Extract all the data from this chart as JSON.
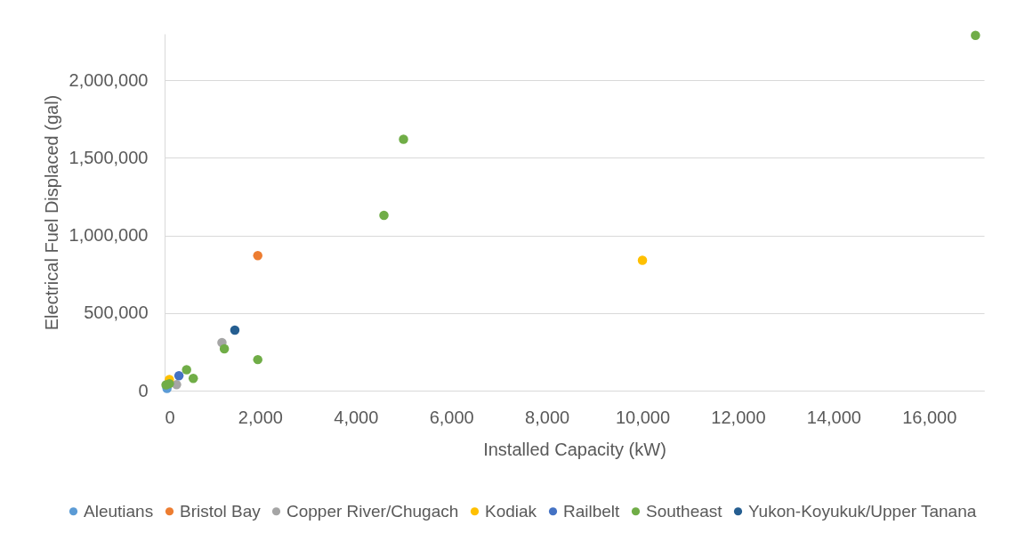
{
  "chart_data": {
    "type": "scatter",
    "xlabel": "Installed Capacity (kW)",
    "ylabel": "Electrical Fuel Displaced (gal)",
    "xlim": [
      0,
      17150
    ],
    "ylim": [
      0,
      2300000
    ],
    "xticks": [
      0,
      {
        "value": 2000,
        "label": "2,000"
      },
      {
        "value": 4000,
        "label": "4,000"
      },
      {
        "value": 6000,
        "label": "6,000"
      },
      {
        "value": 8000,
        "label": "8,000"
      },
      {
        "value": 10000,
        "label": "10,000"
      },
      {
        "value": 12000,
        "label": "12,000"
      },
      {
        "value": 14000,
        "label": "14,000"
      },
      {
        "value": 16000,
        "label": "16,000"
      }
    ],
    "yticks": [
      0,
      {
        "value": 500000,
        "label": "500,000"
      },
      {
        "value": 1000000,
        "label": "1,000,000"
      },
      {
        "value": 1500000,
        "label": "1,500,000"
      },
      {
        "value": 2000000,
        "label": "2,000,000"
      }
    ],
    "grid": "y",
    "legend": "bottom",
    "marker": "circle",
    "series": [
      {
        "name": "Aleutians",
        "color": "#5b9bd5",
        "x": [
          50
        ],
        "values": [
          14000
        ]
      },
      {
        "name": "Bristol Bay",
        "color": "#ed7d31",
        "x": [
          1950
        ],
        "values": [
          870000
        ]
      },
      {
        "name": "Copper River/Chugach",
        "color": "#a5a5a5",
        "x": [
          1200,
          250
        ],
        "values": [
          310000,
          39000
        ]
      },
      {
        "name": "Kodiak",
        "color": "#ffc000",
        "x": [
          10000,
          100
        ],
        "values": [
          840000,
          72000
        ]
      },
      {
        "name": "Railbelt",
        "color": "#4472c4",
        "x": [
          300
        ],
        "values": [
          96000
        ]
      },
      {
        "name": "Southeast",
        "color": "#70ad47",
        "x": [
          16970,
          5000,
          4590,
          1250,
          1950,
          460,
          600,
          100,
          30
        ],
        "values": [
          2290000,
          1620000,
          1130000,
          270000,
          200000,
          135000,
          79000,
          45000,
          37000
        ]
      },
      {
        "name": "Yukon-Koyukuk/Upper Tanana",
        "color": "#255e91",
        "x": [
          1470
        ],
        "values": [
          390000
        ]
      }
    ]
  }
}
